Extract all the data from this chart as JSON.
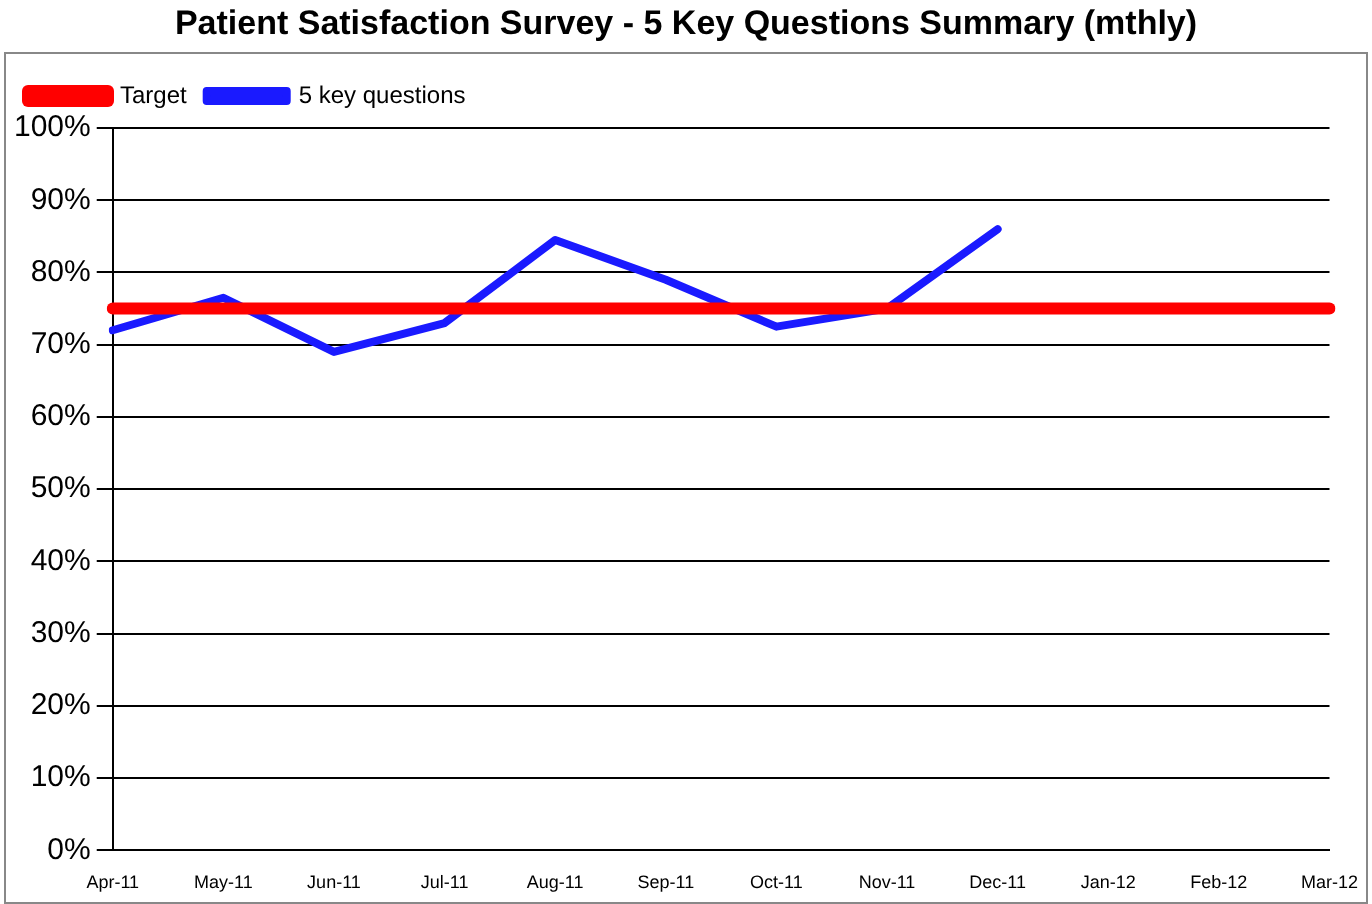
{
  "chart_data": {
    "type": "line",
    "title": "Patient Satisfaction Survey - 5 Key Questions Summary (mthly)",
    "categories": [
      "Apr-11",
      "May-11",
      "Jun-11",
      "Jul-11",
      "Aug-11",
      "Sep-11",
      "Oct-11",
      "Nov-11",
      "Dec-11",
      "Jan-12",
      "Feb-12",
      "Mar-12"
    ],
    "series": [
      {
        "name": "Target",
        "color": "#ff0000",
        "values": [
          75,
          75,
          75,
          75,
          75,
          75,
          75,
          75,
          75,
          75,
          75,
          75
        ]
      },
      {
        "name": "5 key questions",
        "color": "#1a1aff",
        "values": [
          72,
          76.5,
          69,
          73,
          84.5,
          79,
          72.5,
          75,
          86,
          null,
          null,
          null
        ]
      }
    ],
    "ylim": [
      0,
      100
    ],
    "yticks": [
      {
        "value": 0,
        "label": "0%"
      },
      {
        "value": 10,
        "label": "10%"
      },
      {
        "value": 20,
        "label": "20%"
      },
      {
        "value": 30,
        "label": "30%"
      },
      {
        "value": 40,
        "label": "40%"
      },
      {
        "value": 50,
        "label": "50%"
      },
      {
        "value": 60,
        "label": "60%"
      },
      {
        "value": 70,
        "label": "70%"
      },
      {
        "value": 80,
        "label": "80%"
      },
      {
        "value": 90,
        "label": "90%"
      },
      {
        "value": 100,
        "label": "100%"
      }
    ],
    "grid": "y",
    "legend": "top left",
    "marker": "none",
    "line_style": "solid"
  }
}
